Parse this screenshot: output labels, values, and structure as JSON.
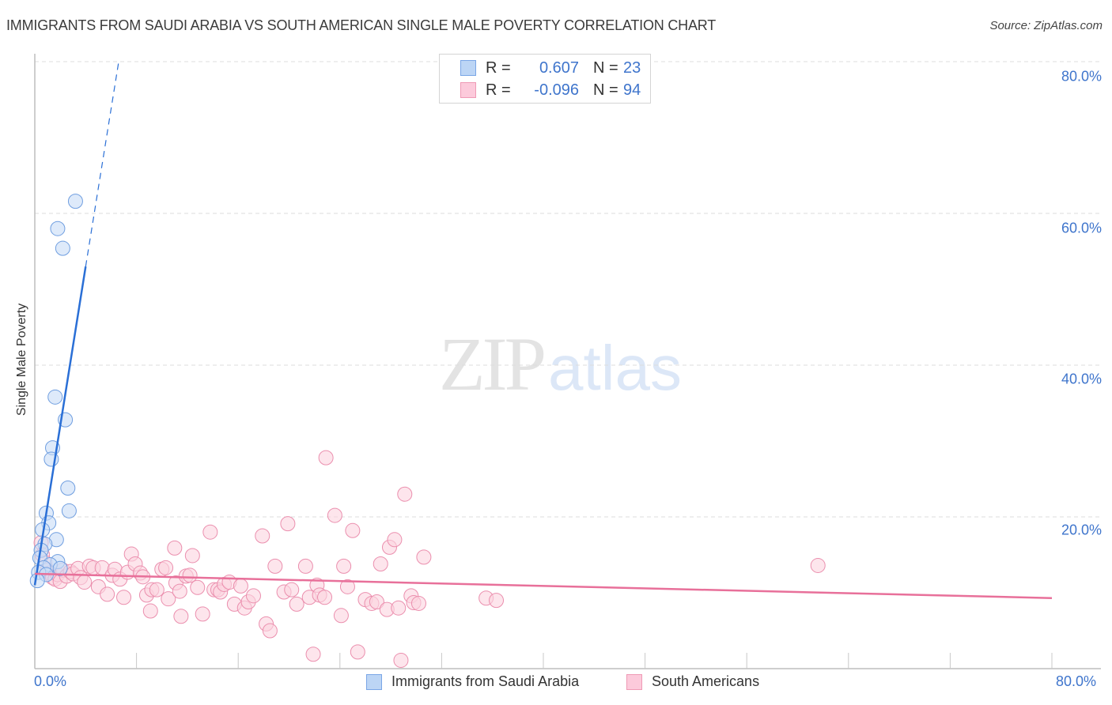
{
  "header": {
    "title": "IMMIGRANTS FROM SAUDI ARABIA VS SOUTH AMERICAN SINGLE MALE POVERTY CORRELATION CHART",
    "source": "Source: ZipAtlas.com"
  },
  "watermark": {
    "zip": "ZIP",
    "atlas": "atlas"
  },
  "stats_legend": {
    "rows": [
      {
        "r_label": "R =",
        "r_value": "0.607",
        "n_label": "N =",
        "n_value": "23",
        "color": "#a9c8f2"
      },
      {
        "r_label": "R =",
        "r_value": "-0.096",
        "n_label": "N =",
        "n_value": "94",
        "color": "#f7b8cc"
      }
    ]
  },
  "axes": {
    "ylabel": "Single Male Poverty",
    "y_ticks": [
      "80.0%",
      "60.0%",
      "40.0%",
      "20.0%"
    ],
    "x_ticks": [
      "0.0%",
      "80.0%"
    ]
  },
  "series_legend": [
    {
      "label": "Immigrants from Saudi Arabia",
      "fill": "#b8d3f5",
      "stroke": "#7aa6e6"
    },
    {
      "label": "South Americans",
      "fill": "#fbc7d7",
      "stroke": "#ef9ab5"
    }
  ],
  "colors": {
    "blue_point_fill": "#c8dcf6",
    "blue_point_stroke": "#6f9ee0",
    "blue_line": "#2a6fd6",
    "pink_point_fill": "#fbd3e0",
    "pink_point_stroke": "#eb8fae",
    "pink_line": "#e8709a",
    "tick_label": "#3f75cc",
    "grid": "#dddddd"
  },
  "chart_data": {
    "type": "scatter",
    "title": "IMMIGRANTS FROM SAUDI ARABIA VS SOUTH AMERICAN SINGLE MALE POVERTY CORRELATION CHART",
    "xlabel": "",
    "ylabel": "Single Male Poverty",
    "xlim": [
      0,
      80
    ],
    "ylim": [
      0,
      80
    ],
    "x_tick_labels": [
      "0.0%",
      "80.0%"
    ],
    "y_tick_labels": [
      "20.0%",
      "40.0%",
      "60.0%",
      "80.0%"
    ],
    "grid": "horizontal dashed at 20/40/60/80",
    "legend_position": "bottom center",
    "series": [
      {
        "name": "Immigrants from Saudi Arabia",
        "R": 0.607,
        "N": 23,
        "trend": {
          "x0": 0.0,
          "y0": 11.0,
          "x1": 4.0,
          "y1": 53.0,
          "dashed_to": {
            "x": 6.6,
            "y": 80.0
          }
        },
        "points": [
          [
            3.2,
            61.6
          ],
          [
            1.8,
            58.0
          ],
          [
            2.2,
            55.4
          ],
          [
            1.6,
            35.8
          ],
          [
            2.4,
            32.8
          ],
          [
            1.4,
            29.1
          ],
          [
            1.3,
            27.6
          ],
          [
            2.6,
            23.8
          ],
          [
            2.7,
            20.8
          ],
          [
            0.9,
            20.5
          ],
          [
            1.1,
            19.2
          ],
          [
            0.6,
            18.3
          ],
          [
            1.7,
            17.0
          ],
          [
            0.8,
            16.4
          ],
          [
            0.5,
            15.6
          ],
          [
            0.4,
            14.6
          ],
          [
            1.8,
            14.1
          ],
          [
            1.2,
            13.7
          ],
          [
            0.7,
            13.3
          ],
          [
            2.0,
            13.2
          ],
          [
            0.3,
            12.7
          ],
          [
            0.9,
            12.4
          ],
          [
            0.2,
            11.6
          ]
        ]
      },
      {
        "name": "South Americans",
        "R": -0.096,
        "N": 94,
        "trend": {
          "x0": 0.0,
          "y0": 12.5,
          "x1": 80.0,
          "y1": 9.3
        },
        "points": [
          [
            0.5,
            16.6
          ],
          [
            0.6,
            15.0
          ],
          [
            0.8,
            14.0
          ],
          [
            1.0,
            13.0
          ],
          [
            1.2,
            12.6
          ],
          [
            1.4,
            12.0
          ],
          [
            1.6,
            11.8
          ],
          [
            1.8,
            12.4
          ],
          [
            2.0,
            11.5
          ],
          [
            2.2,
            13.0
          ],
          [
            2.5,
            12.2
          ],
          [
            2.8,
            12.8
          ],
          [
            3.0,
            12.5
          ],
          [
            3.4,
            13.2
          ],
          [
            3.6,
            12.0
          ],
          [
            3.9,
            11.4
          ],
          [
            4.3,
            13.5
          ],
          [
            4.6,
            13.3
          ],
          [
            5.0,
            10.8
          ],
          [
            5.3,
            13.3
          ],
          [
            5.7,
            9.8
          ],
          [
            6.1,
            12.3
          ],
          [
            6.3,
            13.1
          ],
          [
            6.7,
            11.8
          ],
          [
            7.0,
            9.4
          ],
          [
            7.3,
            12.7
          ],
          [
            7.6,
            15.1
          ],
          [
            7.9,
            13.8
          ],
          [
            8.3,
            12.6
          ],
          [
            8.5,
            12.1
          ],
          [
            8.8,
            9.7
          ],
          [
            9.1,
            7.6
          ],
          [
            9.2,
            10.4
          ],
          [
            9.6,
            10.4
          ],
          [
            10.0,
            13.1
          ],
          [
            10.3,
            13.3
          ],
          [
            10.5,
            9.2
          ],
          [
            11.0,
            15.9
          ],
          [
            11.1,
            11.3
          ],
          [
            11.4,
            10.2
          ],
          [
            11.5,
            6.9
          ],
          [
            11.9,
            12.2
          ],
          [
            12.2,
            12.3
          ],
          [
            12.4,
            14.9
          ],
          [
            12.8,
            10.7
          ],
          [
            13.2,
            7.2
          ],
          [
            13.8,
            18.0
          ],
          [
            14.1,
            10.4
          ],
          [
            14.4,
            10.4
          ],
          [
            14.6,
            10.1
          ],
          [
            14.9,
            11.1
          ],
          [
            15.3,
            11.4
          ],
          [
            15.7,
            8.5
          ],
          [
            16.2,
            10.9
          ],
          [
            16.5,
            8.0
          ],
          [
            16.8,
            8.8
          ],
          [
            17.2,
            9.6
          ],
          [
            17.9,
            17.5
          ],
          [
            18.2,
            5.9
          ],
          [
            18.5,
            5.0
          ],
          [
            18.9,
            13.5
          ],
          [
            19.6,
            10.1
          ],
          [
            19.9,
            19.1
          ],
          [
            20.2,
            10.4
          ],
          [
            20.6,
            8.5
          ],
          [
            21.3,
            13.5
          ],
          [
            21.6,
            9.4
          ],
          [
            21.9,
            1.9
          ],
          [
            22.2,
            11.0
          ],
          [
            22.4,
            9.7
          ],
          [
            22.8,
            9.4
          ],
          [
            22.9,
            27.8
          ],
          [
            23.6,
            20.2
          ],
          [
            24.1,
            7.0
          ],
          [
            24.3,
            13.5
          ],
          [
            24.6,
            10.8
          ],
          [
            25.0,
            18.2
          ],
          [
            25.4,
            2.2
          ],
          [
            26.0,
            9.1
          ],
          [
            26.5,
            8.6
          ],
          [
            26.9,
            8.8
          ],
          [
            27.2,
            13.8
          ],
          [
            27.7,
            7.8
          ],
          [
            27.9,
            16.0
          ],
          [
            28.3,
            17.0
          ],
          [
            28.6,
            8.0
          ],
          [
            28.8,
            1.1
          ],
          [
            29.1,
            23.0
          ],
          [
            29.6,
            9.6
          ],
          [
            29.8,
            8.7
          ],
          [
            30.2,
            8.6
          ],
          [
            30.6,
            14.7
          ],
          [
            35.5,
            9.3
          ],
          [
            36.3,
            9.0
          ],
          [
            61.6,
            13.6
          ]
        ]
      }
    ]
  }
}
